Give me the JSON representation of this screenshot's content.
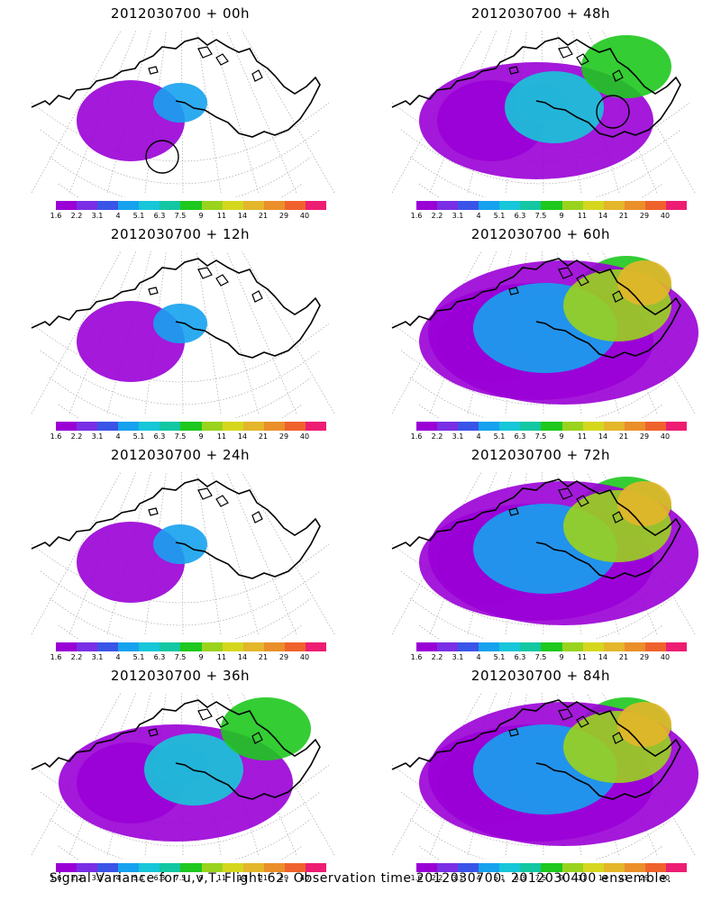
{
  "colorbar": {
    "colors": [
      "#9a00d6",
      "#7a2ee6",
      "#3a54e8",
      "#16a2ee",
      "#17c6d8",
      "#12c7a2",
      "#1ec81e",
      "#9ad31d",
      "#d5d71f",
      "#e4b62a",
      "#ea8f2a",
      "#f0622c",
      "#ed1d73"
    ],
    "labels": [
      "1.6",
      "2.2",
      "3.1",
      "4",
      "5.1",
      "6.3",
      "7.5",
      "9",
      "11",
      "14",
      "21",
      "29",
      "40"
    ]
  },
  "panels": [
    {
      "title": "2012030700 + 00h",
      "level": 1
    },
    {
      "title": "2012030700 + 48h",
      "level": 2
    },
    {
      "title": "2012030700 + 12h",
      "level": 1
    },
    {
      "title": "2012030700 + 60h",
      "level": 3
    },
    {
      "title": "2012030700 + 24h",
      "level": 1
    },
    {
      "title": "2012030700 + 72h",
      "level": 3
    },
    {
      "title": "2012030700 + 36h",
      "level": 2
    },
    {
      "title": "2012030700 + 84h",
      "level": 3
    }
  ],
  "footer": "Signal Variance for u,v,T. Flight 62. Observation time 2012030700. 2012030400 ensemble."
}
